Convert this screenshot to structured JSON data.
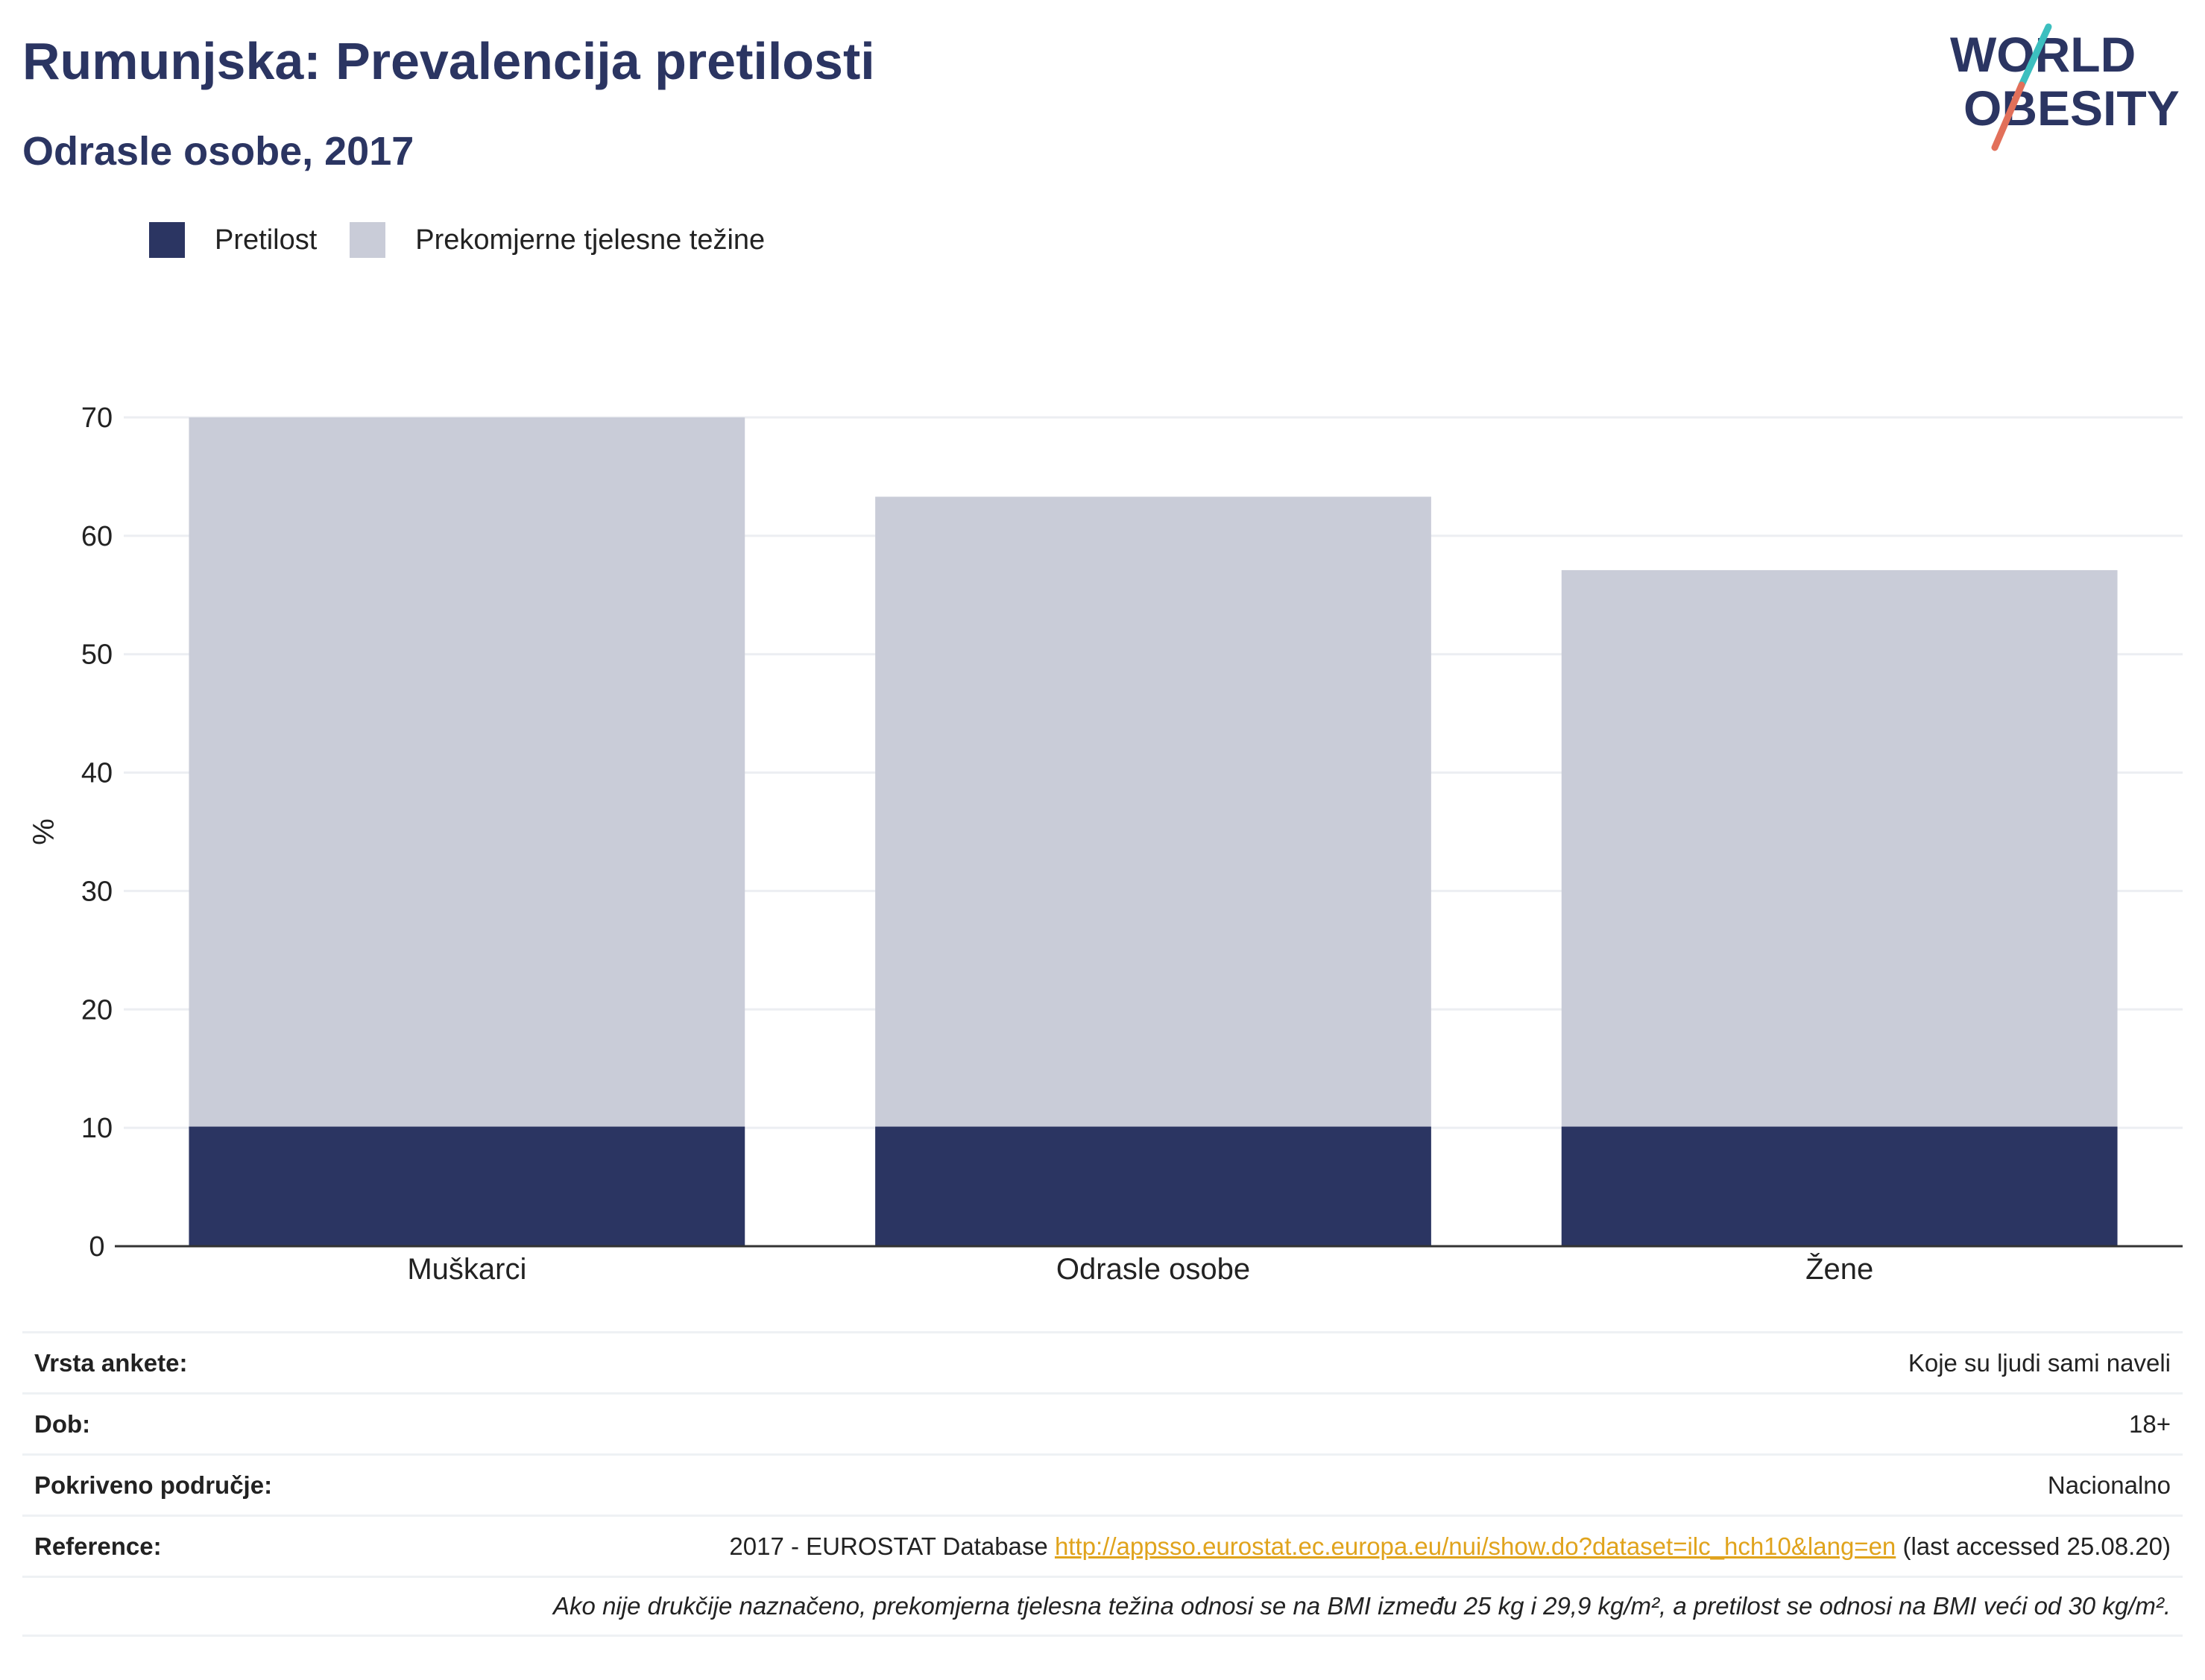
{
  "header": {
    "title": "Rumunjska: Prevalencija pretilosti",
    "subtitle": "Odrasle osobe, 2017"
  },
  "logo": {
    "line1": "WORLD",
    "line2": "OBESITY"
  },
  "colors": {
    "obesity": "#2b3562",
    "overweight": "#c9ccd8",
    "logo_slash_teal": "#3cbfbf",
    "logo_slash_red": "#e2705a",
    "link": "#e0a31c"
  },
  "legend": [
    {
      "label": "Pretilost",
      "color": "#2b3562"
    },
    {
      "label": "Prekomjerne tjelesne težine",
      "color": "#c9ccd8"
    }
  ],
  "chart_data": {
    "type": "bar",
    "stacked": false,
    "overlapping": true,
    "categories": [
      "Muškarci",
      "Odrasle osobe",
      "Žene"
    ],
    "series": [
      {
        "name": "Prekomjerne tjelesne težine",
        "values": [
          70.0,
          63.3,
          57.1
        ]
      },
      {
        "name": "Pretilost",
        "values": [
          10.1,
          10.1,
          10.1
        ]
      }
    ],
    "ylabel": "%",
    "ylim": [
      0,
      70
    ],
    "yticks": [
      0,
      10,
      20,
      30,
      40,
      50,
      60,
      70
    ],
    "grid": true,
    "legend_position": "top-left"
  },
  "info": {
    "survey_label": "Vrsta ankete:",
    "survey_value": "Koje su ljudi sami naveli",
    "age_label": "Dob:",
    "age_value": "18+",
    "coverage_label": "Pokriveno područje:",
    "coverage_value": "Nacionalno",
    "reference_label": "Reference:",
    "reference_prefix": "2017 - EUROSTAT Database ",
    "reference_link": "http://appsso.eurostat.ec.europa.eu/nui/show.do?dataset=ilc_hch10&lang=en",
    "reference_suffix": " (last accessed 25.08.20)",
    "note": "Ako nije drukčije naznačeno, prekomjerna tjelesna težina odnosi se na BMI između 25 kg i 29,9 kg/m², a pretilost se odnosi na BMI veći od 30 kg/m²."
  }
}
